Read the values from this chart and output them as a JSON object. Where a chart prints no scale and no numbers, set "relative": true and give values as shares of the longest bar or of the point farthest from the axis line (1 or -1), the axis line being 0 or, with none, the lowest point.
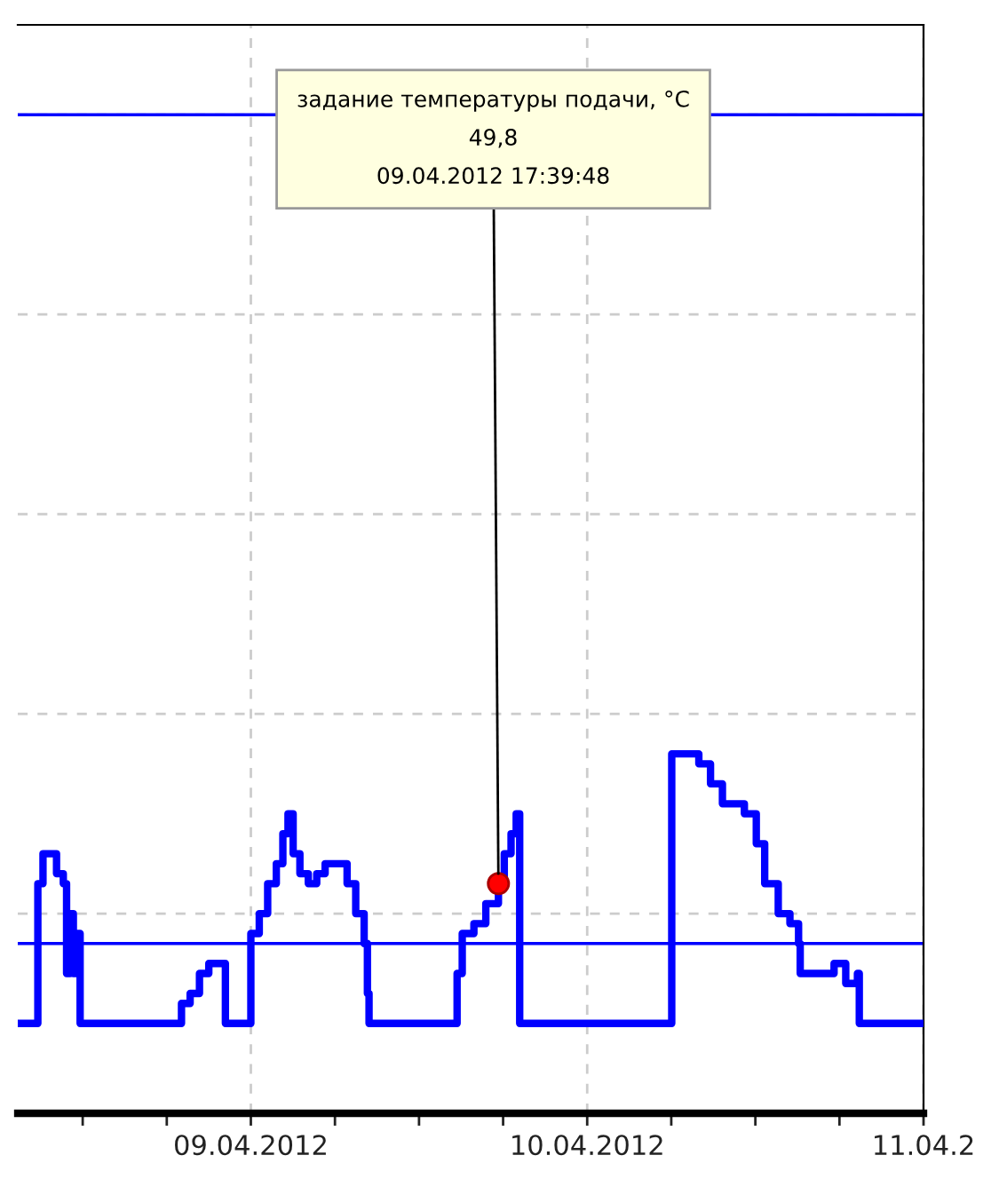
{
  "chart_data": {
    "type": "step",
    "relative": true,
    "grid": true,
    "tick_labels": "x",
    "xlim": [
      "2012-04-08T07:22",
      "2012-04-11T00:00"
    ],
    "xticks": [
      {
        "value": "2012-04-08T12:00",
        "label": null
      },
      {
        "value": "2012-04-08T18:00",
        "label": null
      },
      {
        "value": "2012-04-09T00:00",
        "label": "09.04.2012"
      },
      {
        "value": "2012-04-09T06:00",
        "label": null
      },
      {
        "value": "2012-04-09T12:00",
        "label": null
      },
      {
        "value": "2012-04-09T18:00",
        "label": null
      },
      {
        "value": "2012-04-10T00:00",
        "label": "10.04.2012"
      },
      {
        "value": "2012-04-10T06:00",
        "label": null
      },
      {
        "value": "2012-04-10T12:00",
        "label": null
      },
      {
        "value": "2012-04-10T18:00",
        "label": null
      },
      {
        "value": "2012-04-11T00:00",
        "label": "11.04.2"
      }
    ],
    "series": [
      {
        "color": "#0000ff",
        "x": [
          "2012-04-08T07:22",
          "2012-04-08T08:48",
          "2012-04-08T09:10",
          "2012-04-08T09:32",
          "2012-04-08T10:08",
          "2012-04-08T10:37",
          "2012-04-08T10:51",
          "2012-04-08T11:06",
          "2012-04-08T11:20",
          "2012-04-08T11:35",
          "2012-04-08T11:49",
          "2012-04-08T19:03",
          "2012-04-08T19:40",
          "2012-04-08T20:20",
          "2012-04-08T21:00",
          "2012-04-08T21:35",
          "2012-04-08T22:11",
          "2012-04-09T00:00",
          "2012-04-09T00:36",
          "2012-04-09T01:12",
          "2012-04-09T01:49",
          "2012-04-09T02:17",
          "2012-04-09T02:39",
          "2012-04-09T03:01",
          "2012-04-09T03:30",
          "2012-04-09T04:06",
          "2012-04-09T04:42",
          "2012-04-09T05:18",
          "2012-04-09T05:55",
          "2012-04-09T06:31",
          "2012-04-09T06:52",
          "2012-04-09T07:29",
          "2012-04-09T08:05",
          "2012-04-09T08:19",
          "2012-04-09T08:26",
          "2012-04-09T14:43",
          "2012-04-09T15:05",
          "2012-04-09T15:55",
          "2012-04-09T16:46",
          "2012-04-09T17:40",
          "2012-04-09T18:05",
          "2012-04-09T18:34",
          "2012-04-09T18:56",
          "2012-04-09T19:11",
          "2012-04-10T06:02",
          "2012-04-10T06:45",
          "2012-04-10T07:58",
          "2012-04-10T08:48",
          "2012-04-10T09:39",
          "2012-04-10T10:22",
          "2012-04-10T10:51",
          "2012-04-10T11:13",
          "2012-04-10T12:04",
          "2012-04-10T12:40",
          "2012-04-10T13:16",
          "2012-04-10T13:38",
          "2012-04-10T14:28",
          "2012-04-10T15:05",
          "2012-04-10T15:12",
          "2012-04-10T16:02",
          "2012-04-10T16:53",
          "2012-04-10T17:37",
          "2012-04-10T18:27",
          "2012-04-10T19:17",
          "2012-04-10T19:25",
          "2012-04-11T00:00"
        ],
        "values": [
          0.09,
          0.23,
          0.26,
          0.26,
          0.24,
          0.23,
          0.14,
          0.2,
          0.14,
          0.18,
          0.09,
          0.11,
          0.12,
          0.14,
          0.15,
          0.15,
          0.09,
          0.18,
          0.2,
          0.23,
          0.25,
          0.28,
          0.3,
          0.26,
          0.24,
          0.23,
          0.24,
          0.25,
          0.25,
          0.25,
          0.23,
          0.2,
          0.17,
          0.12,
          0.09,
          0.14,
          0.18,
          0.19,
          0.21,
          0.23,
          0.26,
          0.28,
          0.3,
          0.09,
          0.36,
          0.36,
          0.35,
          0.33,
          0.31,
          0.31,
          0.31,
          0.3,
          0.27,
          0.23,
          0.23,
          0.2,
          0.19,
          0.17,
          0.14,
          0.14,
          0.14,
          0.15,
          0.13,
          0.14,
          0.09,
          0.09
        ]
      },
      {
        "type": "line",
        "color": "#0000ff",
        "x": [
          "2012-04-08T07:22",
          "2012-04-11T00:00"
        ],
        "values": [
          1,
          1
        ]
      },
      {
        "type": "line",
        "color": "#0000ff",
        "x": [
          "2012-04-08T07:22",
          "2012-04-11T00:00"
        ],
        "values": [
          0.17,
          0.17
        ]
      },
      {
        "type": "scatter",
        "color": "#ff0000",
        "marker": "circle",
        "x": [
          "2012-04-09T17:40"
        ],
        "values": [
          0.23
        ]
      }
    ],
    "annotations": [
      {
        "text": "задание температуры подачи, °C\n49,8\n09.04.2012 17:39:48",
        "x": "2012-04-09T17:40",
        "y": 0.23
      }
    ]
  }
}
